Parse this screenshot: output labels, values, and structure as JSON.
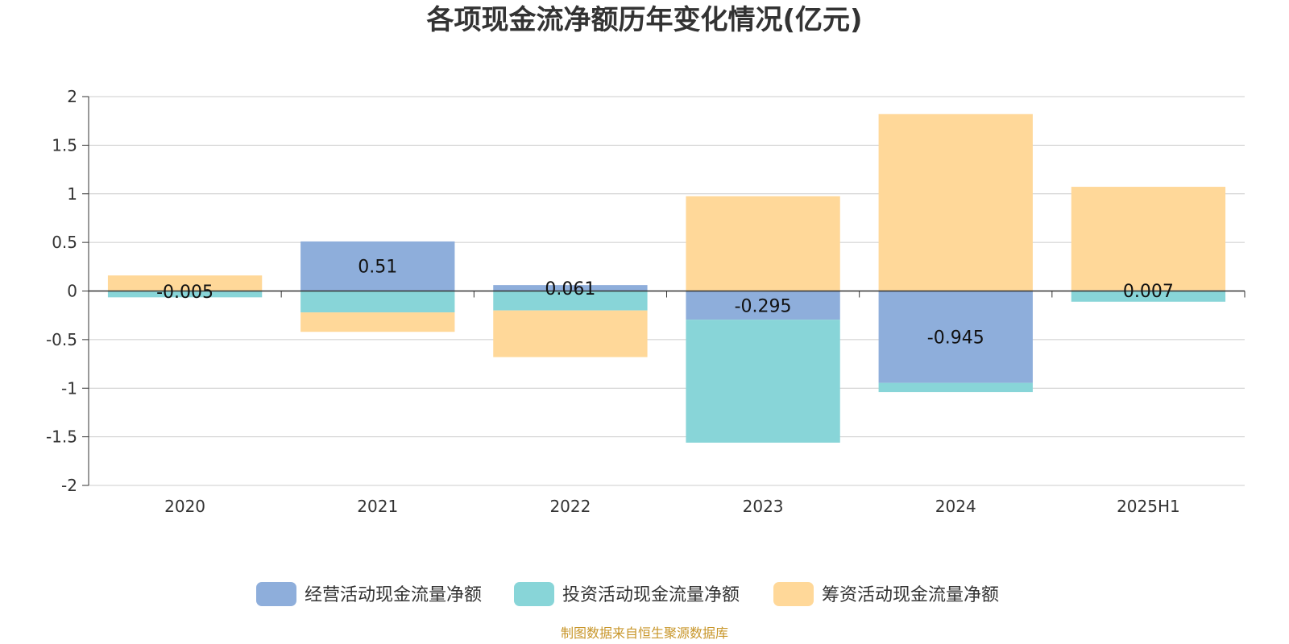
{
  "chart_data": {
    "type": "bar",
    "stacked": true,
    "title": "各项现金流净额历年变化情况(亿元)",
    "categories": [
      "2020",
      "2021",
      "2022",
      "2023",
      "2024",
      "2025H1"
    ],
    "ylim": [
      -2,
      2
    ],
    "yticks": [
      2,
      1.5,
      1,
      0.5,
      0,
      -0.5,
      -1,
      -1.5,
      -2
    ],
    "ytick_labels": [
      "2",
      "1.5",
      "1",
      "0.5",
      "0",
      "-0.5",
      "-1",
      "-1.5",
      "-2"
    ],
    "grid": true,
    "legend_position": "bottom",
    "series": [
      {
        "name": "经营活动现金流量净额",
        "color": "#8eaedb",
        "values": [
          -0.005,
          0.51,
          0.061,
          -0.295,
          -0.945,
          0.007
        ],
        "labels": [
          "-0.005",
          "0.51",
          "0.061",
          "-0.295",
          "-0.945",
          "0.007"
        ]
      },
      {
        "name": "投资活动现金流量净额",
        "color": "#88d5d8",
        "values": [
          -0.06,
          -0.22,
          -0.2,
          -1.265,
          -0.095,
          -0.11
        ]
      },
      {
        "name": "筹资活动现金流量净额",
        "color": "#ffd899",
        "values": [
          0.16,
          -0.2,
          -0.48,
          0.975,
          1.82,
          1.065
        ]
      }
    ],
    "source": "制图数据来自恒生聚源数据库"
  }
}
